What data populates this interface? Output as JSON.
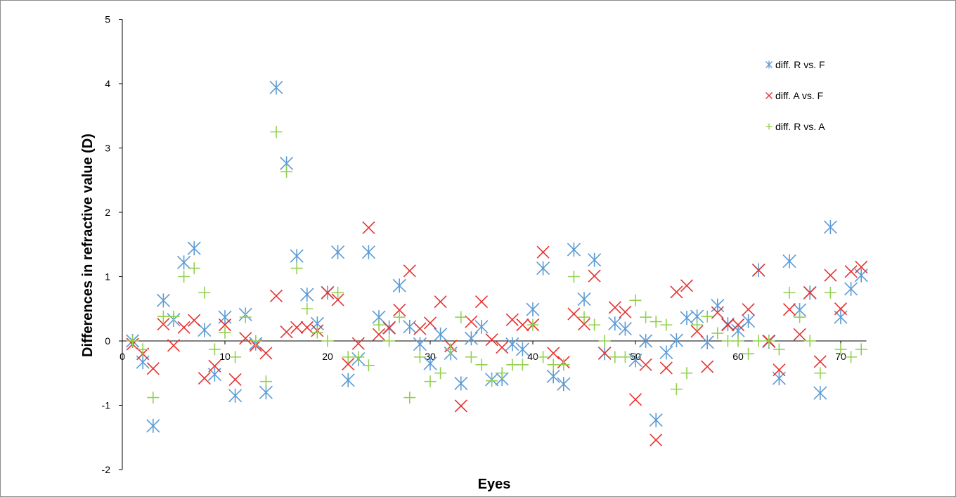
{
  "chart_data": {
    "type": "scatter",
    "title": "",
    "xlabel": "Eyes",
    "ylabel": "Differences in refractive value (D)",
    "xlim": [
      0,
      75
    ],
    "ylim": [
      -2,
      5
    ],
    "x_ticks": [
      0,
      10,
      20,
      30,
      40,
      50,
      60,
      70
    ],
    "y_ticks": [
      -2,
      -1,
      0,
      1,
      2,
      3,
      4,
      5
    ],
    "grid": false,
    "legend_position": "top-right",
    "series": [
      {
        "name": "diff. R vs. F",
        "marker": "asterisk",
        "color": "#5b9bd5",
        "values": [
          0,
          -0.33,
          -1.32,
          0.63,
          0.33,
          1.22,
          1.44,
          0.17,
          -0.52,
          0.37,
          -0.85,
          0.41,
          -0.04,
          -0.8,
          3.94,
          2.76,
          1.32,
          0.72,
          0.27,
          0.75,
          1.38,
          -0.61,
          -0.28,
          1.38,
          0.37,
          0.21,
          0.86,
          0.22,
          -0.05,
          -0.35,
          0.1,
          -0.19,
          -0.66,
          0.04,
          0.22,
          -0.6,
          -0.59,
          -0.05,
          -0.13,
          0.49,
          1.13,
          -0.55,
          -0.67,
          1.42,
          0.65,
          1.26,
          -0.19,
          0.27,
          0.19,
          -0.3,
          0.0,
          -1.23,
          -0.18,
          0.01,
          0.36,
          0.38,
          -0.02,
          0.55,
          0.26,
          0.16,
          0.31,
          1.1,
          -0.01,
          -0.58,
          1.24,
          0.48,
          0.75,
          -0.81,
          1.77,
          0.37,
          0.81,
          1.02
        ]
      },
      {
        "name": "diff. A vs. F",
        "marker": "x",
        "color": "#e8312f",
        "values": [
          -0.05,
          -0.2,
          -0.43,
          0.26,
          -0.07,
          0.21,
          0.32,
          -0.58,
          -0.39,
          0.25,
          -0.6,
          0.04,
          -0.07,
          -0.19,
          0.7,
          0.14,
          0.21,
          0.21,
          0.16,
          0.75,
          0.64,
          -0.36,
          -0.04,
          1.76,
          0.1,
          0.2,
          0.48,
          1.09,
          0.19,
          0.28,
          0.61,
          -0.08,
          -1.01,
          0.3,
          0.61,
          0.02,
          -0.1,
          0.33,
          0.25,
          0.25,
          1.38,
          -0.19,
          -0.33,
          0.42,
          0.26,
          1.01,
          -0.19,
          0.52,
          0.45,
          -0.91,
          -0.37,
          -1.54,
          -0.42,
          0.76,
          0.86,
          0.15,
          -0.4,
          0.44,
          0.25,
          0.25,
          0.49,
          1.1,
          0.0,
          -0.45,
          0.49,
          0.1,
          0.75,
          -0.32,
          1.02,
          0.5,
          1.08,
          1.15
        ]
      },
      {
        "name": "diff. R vs. A",
        "marker": "plus",
        "color": "#92d050",
        "values": [
          0.0,
          -0.13,
          -0.88,
          0.38,
          0.38,
          1.0,
          1.13,
          0.75,
          -0.13,
          0.13,
          -0.25,
          0.37,
          0.0,
          -0.63,
          3.25,
          2.63,
          1.13,
          0.5,
          0.13,
          0.0,
          0.75,
          -0.25,
          -0.25,
          -0.38,
          0.25,
          0.0,
          0.37,
          -0.88,
          -0.25,
          -0.63,
          -0.5,
          -0.13,
          0.37,
          -0.25,
          -0.37,
          -0.62,
          -0.5,
          -0.37,
          -0.37,
          0.25,
          -0.25,
          -0.37,
          -0.37,
          1.0,
          0.37,
          0.25,
          0.0,
          -0.25,
          -0.25,
          0.63,
          0.37,
          0.3,
          0.25,
          -0.75,
          -0.5,
          0.25,
          0.38,
          0.12,
          0.0,
          0.0,
          -0.2,
          0.0,
          0.0,
          -0.13,
          0.75,
          0.37,
          0.0,
          -0.5,
          0.75,
          -0.13,
          -0.25,
          -0.13
        ]
      }
    ]
  }
}
